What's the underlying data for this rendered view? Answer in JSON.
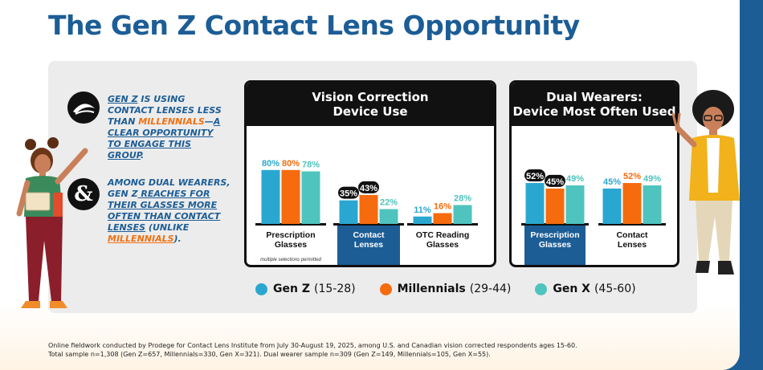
{
  "title": "The Gen Z Contact Lens Opportunity",
  "insights": [
    {
      "icon": "contact-lens-icon",
      "segments": [
        {
          "text": "GEN Z",
          "style": "ul"
        },
        {
          "text": " IS USING CONTACT LENSES LESS THAN ",
          "style": ""
        },
        {
          "text": "MILLENNIALS",
          "style": "or"
        },
        {
          "text": "—",
          "style": ""
        },
        {
          "text": "A CLEAR OPPORTUNITY TO ENGAGE THIS GROUP",
          "style": "ul"
        },
        {
          "text": ".",
          "style": ""
        }
      ]
    },
    {
      "icon": "ampersand-icon",
      "icon_glyph": "&",
      "segments": [
        {
          "text": "AMONG DUAL WEARERS, ",
          "style": ""
        },
        {
          "text": "GEN Z",
          "style": ""
        },
        {
          "text": " REACHES FOR THEIR GLASSES MORE OFTEN THAN CONTACT LENSES",
          "style": "ul"
        },
        {
          "text": " (UNLIKE ",
          "style": ""
        },
        {
          "text": "MILLENNIALS",
          "style": "or ul"
        },
        {
          "text": ").",
          "style": ""
        }
      ]
    }
  ],
  "legend": [
    {
      "name": "Gen Z",
      "range": "(15-28)",
      "color": "#2aa7d0"
    },
    {
      "name": "Millennials",
      "range": "(29-44)",
      "color": "#f66b0e"
    },
    {
      "name": "Gen X",
      "range": "(45-60)",
      "color": "#4fc3bd"
    }
  ],
  "chart_data": [
    {
      "type": "bar",
      "title_lines": [
        "Vision Correction",
        "Device Use"
      ],
      "categories": [
        "Prescription Glasses",
        "Contact Lenses",
        "OTC Reading Glasses"
      ],
      "category_lines": [
        [
          "Prescription",
          "Glasses"
        ],
        [
          "Contact",
          "Lenses"
        ],
        [
          "OTC Reading",
          "Glasses"
        ]
      ],
      "highlight_category": "Contact Lenses",
      "category_note": "multiple selections permitted",
      "series": [
        {
          "name": "Gen Z",
          "values": [
            80,
            35,
            11
          ]
        },
        {
          "name": "Millennials",
          "values": [
            80,
            43,
            16
          ]
        },
        {
          "name": "Gen X",
          "values": [
            78,
            22,
            28
          ]
        }
      ],
      "value_labels": [
        [
          "80%",
          "35%",
          "11%"
        ],
        [
          "80%",
          "43%",
          "16%"
        ],
        [
          "78%",
          "22%",
          "28%"
        ]
      ],
      "callouts": [
        [
          false,
          true,
          false
        ],
        [
          false,
          true,
          false
        ],
        [
          false,
          false,
          false
        ]
      ],
      "ylim": [
        0,
        100
      ]
    },
    {
      "type": "bar",
      "title_lines": [
        "Dual Wearers:",
        "Device Most Often Used"
      ],
      "categories": [
        "Prescription Glasses",
        "Contact Lenses"
      ],
      "category_lines": [
        [
          "Prescription",
          "Glasses"
        ],
        [
          "Contact",
          "Lenses"
        ]
      ],
      "highlight_category": "Prescription Glasses",
      "series": [
        {
          "name": "Gen Z",
          "values": [
            52,
            45
          ]
        },
        {
          "name": "Millennials",
          "values": [
            45,
            52
          ]
        },
        {
          "name": "Gen X",
          "values": [
            49,
            49
          ]
        }
      ],
      "value_labels": [
        [
          "52%",
          "45%"
        ],
        [
          "45%",
          "52%"
        ],
        [
          "49%",
          "49%"
        ]
      ],
      "callouts": [
        [
          true,
          false
        ],
        [
          true,
          false
        ],
        [
          false,
          false
        ]
      ],
      "ylim": [
        0,
        100
      ]
    }
  ],
  "footnote": [
    "Online fieldwork conducted by Prodege for Contact Lens Institute from July 30-August 19, 2025, among U.S. and Canadian vision corrected respondents ages 15-60.",
    "Total sample n=1,308 (Gen Z=657, Millennials=330, Gen X=321). Dual wearer sample n=309 (Gen Z=149, Millennials=105, Gen X=55)."
  ]
}
